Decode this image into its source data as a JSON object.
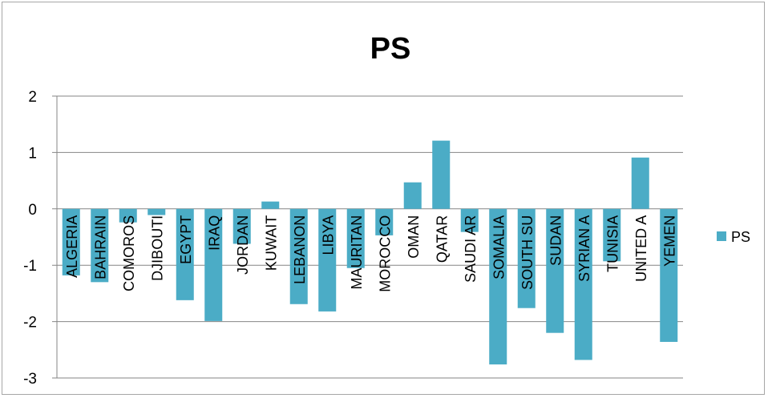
{
  "chart_data": {
    "type": "bar",
    "title": "PS",
    "xlabel": "",
    "ylabel": "",
    "ylim": [
      -3,
      2
    ],
    "yticks": [
      2,
      1,
      0,
      -1,
      -2,
      -3
    ],
    "grid": true,
    "legend_position": "right",
    "colors": {
      "bar": "#4BACC6",
      "grid": "#868686",
      "axis": "#868686"
    },
    "categories": [
      "ALGERIA",
      "BAHRAIN",
      "COMOROS",
      "DJIBOUTI",
      "EGYPT",
      "IRAQ",
      "JORDAN",
      "KUWAIT",
      "LEBANON",
      "LIBYA",
      "MAURITAN",
      "MOROCCO",
      "OMAN",
      "QATAR",
      "SAUDI AR",
      "SOMALIA",
      "SOUTH SU",
      "SUDAN",
      "SYRIAN A",
      "TUNISIA",
      "UNITED A",
      "YEMEN"
    ],
    "series": [
      {
        "name": "PS",
        "values": [
          -1.18,
          -1.3,
          -0.24,
          -0.11,
          -1.62,
          -1.99,
          -0.62,
          0.13,
          -1.69,
          -1.82,
          -1.05,
          -0.47,
          0.47,
          1.21,
          -0.41,
          -2.76,
          -1.76,
          -2.2,
          -2.68,
          -0.93,
          0.91,
          -2.36
        ]
      }
    ]
  }
}
